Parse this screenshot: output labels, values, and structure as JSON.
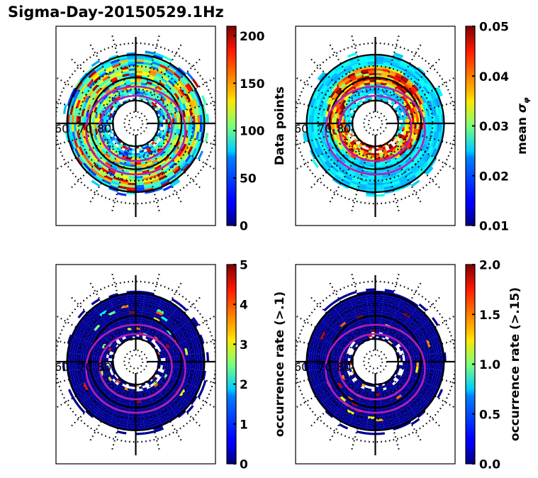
{
  "figure": {
    "title": "Sigma-Day-20150529.1Hz"
  },
  "chart_data": [
    {
      "type": "heatmap",
      "projection": "polar",
      "panel": "top-left",
      "title": "",
      "colormap": "jet",
      "colorbar": {
        "label": "Data points",
        "range": [
          0,
          210
        ],
        "ticks": [
          0,
          50,
          100,
          150,
          200
        ],
        "tick_labels": [
          "0",
          "50",
          "100",
          "150",
          "200"
        ]
      },
      "latitude_circles": [
        60,
        70,
        80
      ],
      "latitude_labels": [
        "60",
        "70",
        "80"
      ],
      "oval_contours": 2,
      "description": "Counts per MLAT/MLT bin, mostly 20-120 with some bins reaching ~200 near 65-75 deg"
    },
    {
      "type": "heatmap",
      "projection": "polar",
      "panel": "top-right",
      "title": "",
      "colormap": "jet",
      "colorbar": {
        "label": "mean σφ",
        "label_main": "mean ",
        "label_symbol": "σ",
        "label_sub": "φ",
        "range": [
          0.01,
          0.05
        ],
        "ticks": [
          0.01,
          0.02,
          0.03,
          0.04,
          0.05
        ],
        "tick_labels": [
          "0.01",
          "0.02",
          "0.03",
          "0.04",
          "0.05"
        ]
      },
      "latitude_circles": [
        60,
        70,
        80
      ],
      "latitude_labels": [
        "60",
        "70",
        "80"
      ],
      "oval_contours": 2,
      "description": "Mean sigma-phi ~0.02-0.03 at lower latitudes, rising to 0.04-0.05 inside the auroral oval"
    },
    {
      "type": "heatmap",
      "projection": "polar",
      "panel": "bottom-left",
      "title": "",
      "colormap": "jet",
      "colorbar": {
        "label": "occurrence rate (>.1)",
        "range": [
          0,
          5
        ],
        "ticks": [
          0,
          1,
          2,
          3,
          4,
          5
        ],
        "tick_labels": [
          "0",
          "1",
          "2",
          "3",
          "4",
          "5"
        ]
      },
      "latitude_circles": [
        60,
        70,
        80
      ],
      "latitude_labels": [
        "60",
        "70",
        "80"
      ],
      "oval_contours": 2,
      "description": "Occurrence rate mostly ~0, sparse bins 2-5 along the oval in the night/dawn sector"
    },
    {
      "type": "heatmap",
      "projection": "polar",
      "panel": "bottom-right",
      "title": "",
      "colormap": "jet",
      "colorbar": {
        "label": "occurrence rate (>.15)",
        "range": [
          0.0,
          2.0
        ],
        "ticks": [
          0.0,
          0.5,
          1.0,
          1.5,
          2.0
        ],
        "tick_labels": [
          "0.0",
          "0.5",
          "1.0",
          "1.5",
          "2.0"
        ]
      },
      "latitude_circles": [
        60,
        70,
        80
      ],
      "latitude_labels": [
        "60",
        "70",
        "80"
      ],
      "oval_contours": 2,
      "description": "Occurrence rate mostly ~0, a few bins 1.5-2.0 along the oval"
    }
  ],
  "colors": {
    "oval_contour": "#b31fb3",
    "grid_solid": "#000000",
    "grid_dotted": "#000000"
  }
}
